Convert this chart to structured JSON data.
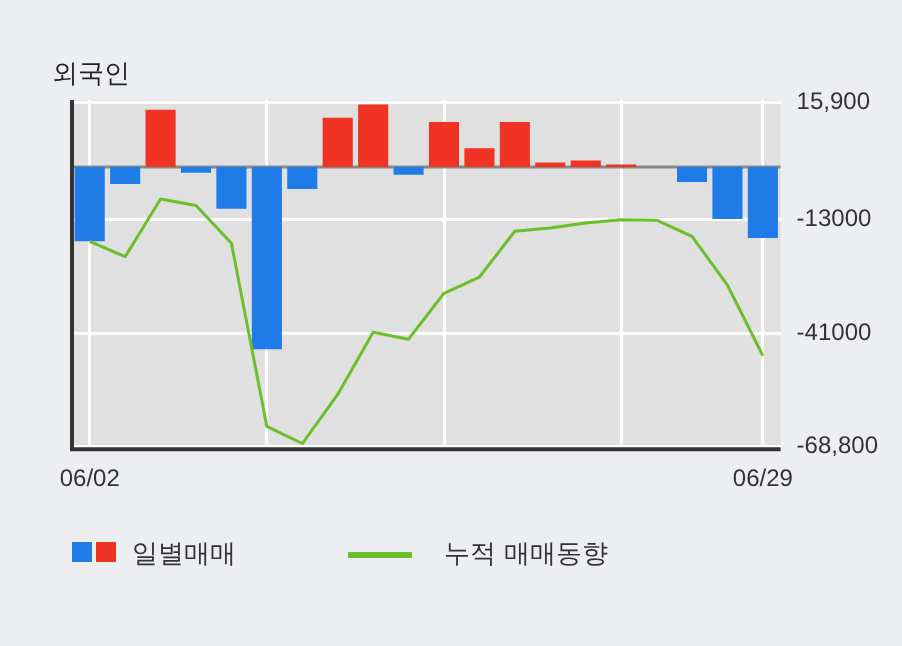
{
  "chart_data": {
    "type": "bar",
    "title": "외국인",
    "categories": [
      "06/02",
      null,
      null,
      null,
      null,
      null,
      null,
      null,
      null,
      null,
      null,
      null,
      null,
      null,
      null,
      null,
      null,
      null,
      null,
      "06/29"
    ],
    "series": [
      {
        "name": "일별매매",
        "colors": [
          "#1f7be8",
          "#1f7be8",
          "#f03322",
          "#1f7be8",
          "#1f7be8",
          "#1f7be8",
          "#1f7be8",
          "#f03322",
          "#f03322",
          "#1f7be8",
          "#f03322",
          "#f03322",
          "#f03322",
          "#f03322",
          "#f03322",
          "#f03322",
          "#f03322",
          "#1f7be8",
          "#1f7be8",
          "#1f7be8"
        ],
        "values": [
          -18300,
          -4200,
          14100,
          -1400,
          -10300,
          -44900,
          -5400,
          12100,
          15400,
          -1900,
          11100,
          4600,
          11100,
          1100,
          1600,
          600,
          0,
          -3700,
          -12800,
          -17500
        ]
      },
      {
        "name": "누적 매매동향",
        "type": "line",
        "color": "#6abf2a",
        "values": [
          -18300,
          -22100,
          -7900,
          -9500,
          -18800,
          -63900,
          -68100,
          -56000,
          -40700,
          -42400,
          -31100,
          -27100,
          -15800,
          -15000,
          -13800,
          -13000,
          -13100,
          -17100,
          -29100,
          -46500
        ]
      }
    ],
    "ylim": [
      -69500,
      16500
    ],
    "yticks": [
      {
        "value": 15900,
        "label": "15,900"
      },
      -13000,
      -41000,
      {
        "value": -68800,
        "label": "-68,800"
      }
    ],
    "grid": true,
    "legend": "bottom",
    "marker": "none",
    "line_style": "solid"
  }
}
